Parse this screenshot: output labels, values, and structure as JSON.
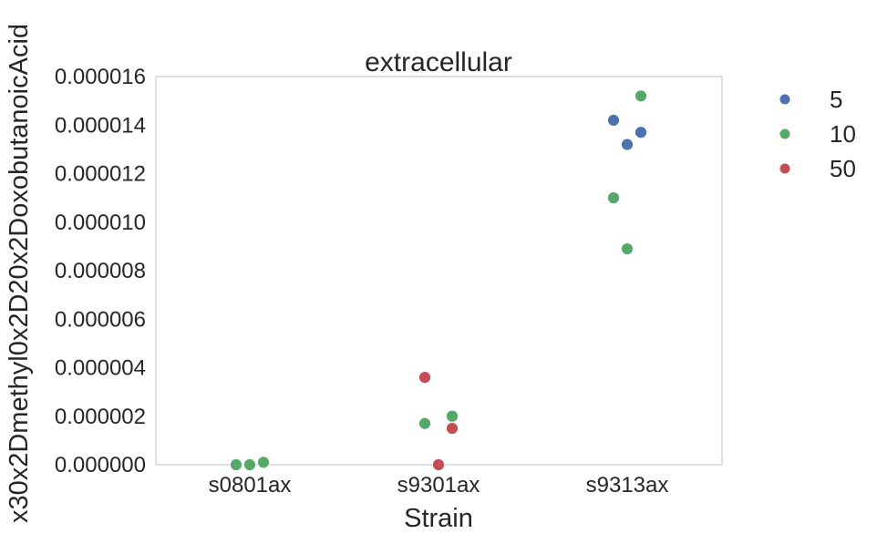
{
  "chart_data": {
    "type": "scatter",
    "title": "extracellular",
    "xlabel": "Strain",
    "ylabel": "x30x2Dmethyl0x2D20x2DoxobutanoicAcid",
    "categories": [
      "s0801ax",
      "s9301ax",
      "s9313ax"
    ],
    "ylim": [
      0,
      1.6e-05
    ],
    "yticks": [
      "0.000000",
      "0.000002",
      "0.000004",
      "0.000006",
      "0.000008",
      "0.000010",
      "0.000012",
      "0.000014",
      "0.000016"
    ],
    "grid": false,
    "legend_position": "right",
    "series": [
      {
        "name": "5",
        "color": "#4c72b0",
        "points": [
          {
            "category": "s9313ax",
            "y": 1.42e-05
          },
          {
            "category": "s9313ax",
            "y": 1.32e-05
          },
          {
            "category": "s9313ax",
            "y": 1.37e-05
          }
        ]
      },
      {
        "name": "10",
        "color": "#55a868",
        "points": [
          {
            "category": "s0801ax",
            "y": 0.0
          },
          {
            "category": "s0801ax",
            "y": 0.0
          },
          {
            "category": "s0801ax",
            "y": 1e-07
          },
          {
            "category": "s9301ax",
            "y": 1.7e-06
          },
          {
            "category": "s9301ax",
            "y": 0.0
          },
          {
            "category": "s9301ax",
            "y": 2e-06
          },
          {
            "category": "s9313ax",
            "y": 1.1e-05
          },
          {
            "category": "s9313ax",
            "y": 8.9e-06
          },
          {
            "category": "s9313ax",
            "y": 1.52e-05
          }
        ]
      },
      {
        "name": "50",
        "color": "#c44e52",
        "points": [
          {
            "category": "s9301ax",
            "y": 3.6e-06
          },
          {
            "category": "s9301ax",
            "y": 0.0
          },
          {
            "category": "s9301ax",
            "y": 1.5e-06
          }
        ]
      }
    ]
  }
}
